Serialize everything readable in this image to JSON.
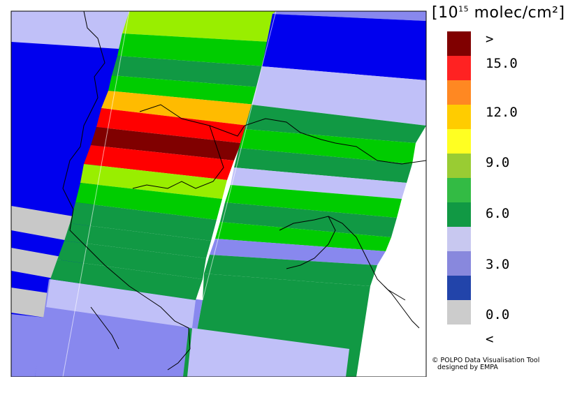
{
  "colorbar": {
    "units_prefix": "[10",
    "units_exponent": "15",
    "units_suffix": " molec/cm²]",
    "swatches": [
      {
        "color": "#800000"
      },
      {
        "color": "#ff2222"
      },
      {
        "color": "#ff8822"
      },
      {
        "color": "#ffcc00"
      },
      {
        "color": "#ffff22"
      },
      {
        "color": "#99cc33"
      },
      {
        "color": "#33bb44"
      },
      {
        "color": "#119944"
      },
      {
        "color": "#c8c8f0"
      },
      {
        "color": "#8888dd"
      },
      {
        "color": "#2244aa"
      },
      {
        "color": "#cccccc"
      }
    ],
    "ticks": [
      ">",
      "15.0",
      "12.0",
      "9.0",
      "6.0",
      "3.0",
      "0.0",
      "<"
    ]
  },
  "credit": {
    "line1": "© POLPO Data Visualisation Tool",
    "line2": "designed by EMPA"
  },
  "map_colors": {
    "dark_red": "#800000",
    "red": "#ff0000",
    "orange": "#ffbb00",
    "light_green": "#99ee00",
    "green": "#00cc00",
    "dark_green": "#119944",
    "lavender": "#c0c0f8",
    "periwinkle": "#8888ee",
    "blue": "#0000ee",
    "gray": "#c8c8c8"
  }
}
